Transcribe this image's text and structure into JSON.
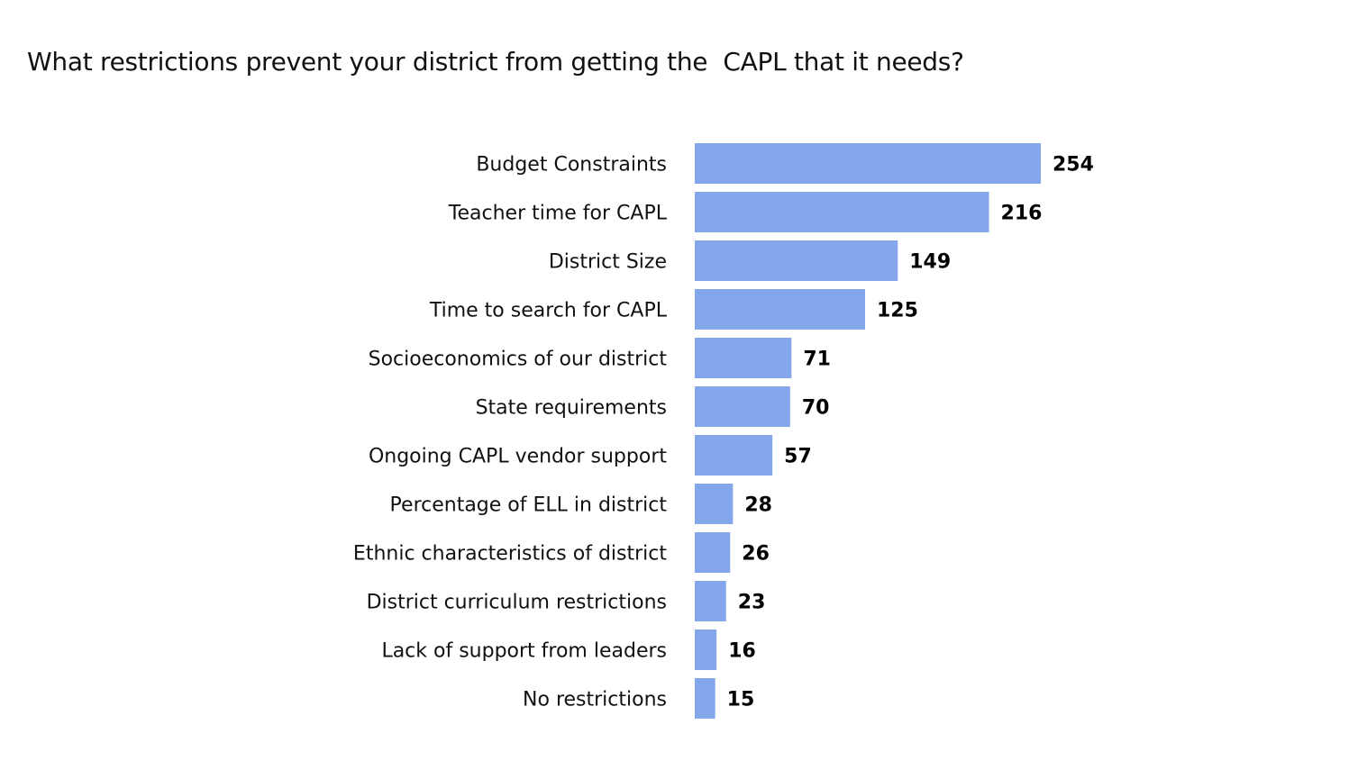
{
  "chart_data": {
    "type": "bar",
    "orientation": "horizontal",
    "title": "What restrictions prevent your district from getting the  CAPL that it needs?",
    "categories": [
      "Budget Constraints",
      "Teacher time for CAPL",
      "District Size",
      "Time to search for CAPL",
      "Socioeconomics of our district",
      "State requirements",
      "Ongoing CAPL vendor support",
      "Percentage of ELL in district",
      "Ethnic characteristics of district",
      "District curriculum restrictions",
      "Lack of support from leaders",
      "No restrictions"
    ],
    "values": [
      254,
      216,
      149,
      125,
      71,
      70,
      57,
      28,
      26,
      23,
      16,
      15
    ],
    "xlabel": "",
    "ylabel": "",
    "xlim": [
      0,
      254
    ],
    "grid": false,
    "data_labels": true,
    "bar_color": "#84a6ea"
  }
}
